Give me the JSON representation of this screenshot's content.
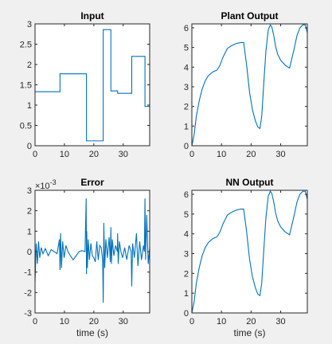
{
  "chart_data": [
    {
      "type": "line",
      "title": "Input",
      "xlabel": "",
      "ylabel": "",
      "xlim": [
        0,
        39
      ],
      "ylim": [
        0,
        3
      ],
      "xticks": [
        0,
        10,
        20,
        30
      ],
      "yticks": [
        0,
        0.5,
        1,
        1.5,
        2,
        2.5,
        3
      ],
      "ytick_labels": [
        "0",
        "0.5",
        "1",
        "1.5",
        "2",
        "2.5",
        "3"
      ],
      "grid": false,
      "color": "#0072bd",
      "series": [
        {
          "x": [
            0,
            8.5,
            8.5,
            17.5,
            17.5,
            23.2,
            23.2,
            25.8,
            25.8,
            28.1,
            28.1,
            32.9,
            32.9,
            37.4,
            37.4,
            39
          ],
          "y": [
            1.33,
            1.33,
            1.77,
            1.77,
            0.12,
            0.12,
            2.86,
            2.86,
            1.35,
            1.35,
            1.29,
            1.29,
            2.2,
            2.2,
            0.97,
            0.97
          ]
        }
      ]
    },
    {
      "type": "line",
      "title": "Plant Output",
      "xlabel": "",
      "ylabel": "",
      "xlim": [
        0,
        39
      ],
      "ylim": [
        0,
        6.2
      ],
      "xticks": [
        0,
        10,
        20,
        30
      ],
      "yticks": [
        0,
        1,
        2,
        3,
        4,
        5,
        6
      ],
      "ytick_labels": [
        "0",
        "1",
        "2",
        "3",
        "4",
        "5",
        "6"
      ],
      "grid": false,
      "color": "#0072bd",
      "series": [
        {
          "x": [
            0,
            0.8,
            1.5,
            2.5,
            3.5,
            4.5,
            5.5,
            7,
            8.5,
            9.5,
            10.5,
            12,
            13.5,
            15,
            16.5,
            17.5,
            18.5,
            19.5,
            20.5,
            21.5,
            22.3,
            23,
            23.6,
            24.3,
            25,
            25.8,
            26.5,
            27,
            27.6,
            28.3,
            29,
            30,
            31.5,
            33,
            34.5,
            35.5,
            36.5,
            37.5,
            38.3,
            39
          ],
          "y": [
            0,
            0.6,
            1.5,
            2.3,
            2.9,
            3.3,
            3.55,
            3.75,
            3.85,
            4.1,
            4.5,
            4.95,
            5.1,
            5.2,
            5.25,
            5.25,
            4.1,
            2.7,
            1.8,
            1.25,
            0.95,
            0.88,
            1.5,
            3.2,
            4.8,
            5.9,
            6.15,
            6.05,
            5.65,
            5.05,
            4.65,
            4.35,
            4.1,
            3.95,
            4.9,
            5.6,
            6.0,
            6.15,
            6.15,
            5.75
          ]
        }
      ]
    },
    {
      "type": "line",
      "title": "Error",
      "xlabel": "time (s)",
      "ylabel": "",
      "axis_multiplier": "×10",
      "axis_multiplier_exponent": "-3",
      "xlim": [
        0,
        39
      ],
      "ylim": [
        -3,
        3
      ],
      "xticks": [
        0,
        10,
        20,
        30
      ],
      "yticks": [
        -3,
        -2,
        -1,
        0,
        1,
        2,
        3
      ],
      "ytick_labels": [
        "-3",
        "-2",
        "-1",
        "0",
        "1",
        "2",
        "3"
      ],
      "grid": false,
      "color": "#0072bd",
      "series": [
        {
          "x": [
            0,
            0.4,
            0.8,
            1.2,
            1.6,
            2.1,
            2.7,
            3.5,
            4.5,
            5.5,
            6.5,
            7.5,
            8.3,
            8.5,
            8.7,
            9.0,
            9.4,
            9.9,
            10.5,
            11.2,
            12,
            13,
            14,
            15,
            16,
            17,
            17.4,
            17.5,
            17.6,
            17.8,
            18.1,
            18.5,
            19,
            19.5,
            20,
            20.5,
            21,
            21.5,
            22,
            22.5,
            23.0,
            23.2,
            23.4,
            23.7,
            24.1,
            24.6,
            25.2,
            25.6,
            25.8,
            26.0,
            26.3,
            26.8,
            27.4,
            28.0,
            28.1,
            28.3,
            28.7,
            29.2,
            29.8,
            30.5,
            31.2,
            32.0,
            32.7,
            32.9,
            33.2,
            33.8,
            34.5,
            35.0,
            35.6,
            36.2,
            36.9,
            37.2,
            37.4,
            37.6,
            38.0,
            38.5,
            39
          ],
          "y": [
            -1.5,
            0.4,
            -0.6,
            0.5,
            -0.3,
            0.2,
            -0.1,
            0.15,
            -0.2,
            0.1,
            0.0,
            -0.1,
            0.6,
            -0.9,
            0.9,
            -0.8,
            0.5,
            -0.3,
            0.3,
            0.0,
            -0.2,
            -0.4,
            -0.2,
            0.0,
            0.05,
            0.0,
            2.6,
            -1.1,
            1.0,
            -0.8,
            0.6,
            -0.4,
            0.4,
            -0.2,
            -0.3,
            -0.5,
            0.5,
            -0.4,
            0.3,
            0.2,
            -0.4,
            -2.5,
            1.4,
            -0.8,
            0.6,
            -0.3,
            0.7,
            -0.5,
            1.2,
            -0.6,
            0.6,
            -0.2,
            0.3,
            0.0,
            0.9,
            -0.6,
            0.5,
            0.0,
            -0.3,
            0.2,
            -0.4,
            0.3,
            0.0,
            -1.7,
            0.4,
            -0.3,
            0.9,
            -0.7,
            0.5,
            -0.4,
            0.3,
            0.0,
            2.6,
            -0.4,
            1.8,
            -0.6,
            0.2
          ]
        }
      ]
    },
    {
      "type": "line",
      "title": "NN Output",
      "xlabel": "time (s)",
      "ylabel": "",
      "xlim": [
        0,
        39
      ],
      "ylim": [
        0,
        6.2
      ],
      "xticks": [
        0,
        10,
        20,
        30
      ],
      "yticks": [
        0,
        1,
        2,
        3,
        4,
        5,
        6
      ],
      "ytick_labels": [
        "0",
        "1",
        "2",
        "3",
        "4",
        "5",
        "6"
      ],
      "grid": false,
      "color": "#0072bd",
      "series": [
        {
          "x": [
            0,
            0.8,
            1.5,
            2.5,
            3.5,
            4.5,
            5.5,
            7,
            8.5,
            9.5,
            10.5,
            12,
            13.5,
            15,
            16.5,
            17.5,
            18.5,
            19.5,
            20.5,
            21.5,
            22.3,
            23,
            23.6,
            24.3,
            25,
            25.8,
            26.5,
            27,
            27.6,
            28.3,
            29,
            30,
            31.5,
            33,
            34.5,
            35.5,
            36.5,
            37.5,
            38.3,
            39
          ],
          "y": [
            0,
            0.6,
            1.5,
            2.3,
            2.9,
            3.3,
            3.55,
            3.75,
            3.85,
            4.1,
            4.5,
            4.95,
            5.1,
            5.2,
            5.25,
            5.25,
            4.1,
            2.7,
            1.8,
            1.25,
            0.95,
            0.88,
            1.5,
            3.2,
            4.8,
            5.9,
            6.15,
            6.05,
            5.65,
            5.05,
            4.65,
            4.35,
            4.1,
            3.95,
            4.9,
            5.6,
            6.0,
            6.15,
            6.15,
            5.75
          ]
        }
      ]
    }
  ]
}
